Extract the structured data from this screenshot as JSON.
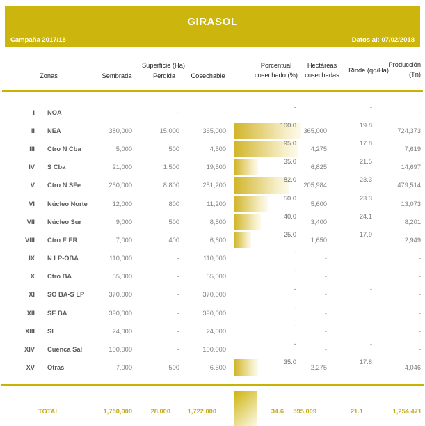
{
  "header": {
    "title": "GIRASOL",
    "campaign": "Campaña 2017/18",
    "data_as_of": "Datos al: 07/02/2018"
  },
  "columns": {
    "zonas": "Zonas",
    "superficie_group": "Superficie (Ha)",
    "sembrada": "Sembrada",
    "perdida": "Perdida",
    "cosechable": "Cosechable",
    "pct_line1": "Porcentual",
    "pct_line2": "cosechado (%)",
    "hect_line1": "Hectáreas",
    "hect_line2": "cosechadas",
    "rinde": "Rinde (qq/Ha)",
    "prod_line1": "Producción",
    "prod_line2": "(Tn)"
  },
  "colors": {
    "band": "#CCB60E",
    "rule": "#C8B400",
    "bar_start": "#D2B52B",
    "bar_end": "#FDFAEA",
    "total_text": "#C5AB1D"
  },
  "chart_data": {
    "type": "table",
    "title": "GIRASOL",
    "subtitle": "Campaña 2017/18 — Datos al: 07/02/2018",
    "bar_column": "pct",
    "bar_range": [
      0,
      100
    ],
    "rows": [
      {
        "num": "I",
        "zone": "NOA",
        "sembrada": "-",
        "perdida": "-",
        "cosechable": "-",
        "pct": "-",
        "pct_value": 0,
        "hect": "-",
        "rinde": "-",
        "prod": "-"
      },
      {
        "num": "II",
        "zone": "NEA",
        "sembrada": "380,000",
        "perdida": "15,000",
        "cosechable": "365,000",
        "pct": "100.0",
        "pct_value": 100,
        "hect": "365,000",
        "rinde": "19.8",
        "prod": "724,373"
      },
      {
        "num": "III",
        "zone": "Ctro N Cba",
        "sembrada": "5,000",
        "perdida": "500",
        "cosechable": "4,500",
        "pct": "95.0",
        "pct_value": 95,
        "hect": "4,275",
        "rinde": "17.8",
        "prod": "7,619"
      },
      {
        "num": "IV",
        "zone": "S Cba",
        "sembrada": "21,000",
        "perdida": "1,500",
        "cosechable": "19,500",
        "pct": "35.0",
        "pct_value": 35,
        "hect": "6,825",
        "rinde": "21.5",
        "prod": "14,697"
      },
      {
        "num": "V",
        "zone": "Ctro N SFe",
        "sembrada": "260,000",
        "perdida": "8,800",
        "cosechable": "251,200",
        "pct": "82.0",
        "pct_value": 82,
        "hect": "205,984",
        "rinde": "23.3",
        "prod": "479,514"
      },
      {
        "num": "VI",
        "zone": "Núcleo Norte",
        "sembrada": "12,000",
        "perdida": "800",
        "cosechable": "11,200",
        "pct": "50.0",
        "pct_value": 50,
        "hect": "5,600",
        "rinde": "23.3",
        "prod": "13,073"
      },
      {
        "num": "VII",
        "zone": "Núcleo Sur",
        "sembrada": "9,000",
        "perdida": "500",
        "cosechable": "8,500",
        "pct": "40.0",
        "pct_value": 40,
        "hect": "3,400",
        "rinde": "24.1",
        "prod": "8,201"
      },
      {
        "num": "VIII",
        "zone": "Ctro E ER",
        "sembrada": "7,000",
        "perdida": "400",
        "cosechable": "6,600",
        "pct": "25.0",
        "pct_value": 25,
        "hect": "1,650",
        "rinde": "17.9",
        "prod": "2,949"
      },
      {
        "num": "IX",
        "zone": "N LP-OBA",
        "sembrada": "110,000",
        "perdida": "-",
        "cosechable": "110,000",
        "pct": "-",
        "pct_value": 0,
        "hect": "-",
        "rinde": "-",
        "prod": "-"
      },
      {
        "num": "X",
        "zone": "Ctro BA",
        "sembrada": "55,000",
        "perdida": "-",
        "cosechable": "55,000",
        "pct": "-",
        "pct_value": 0,
        "hect": "-",
        "rinde": "-",
        "prod": "-"
      },
      {
        "num": "XI",
        "zone": "SO BA-S LP",
        "sembrada": "370,000",
        "perdida": "-",
        "cosechable": "370,000",
        "pct": "-",
        "pct_value": 0,
        "hect": "-",
        "rinde": "-",
        "prod": "-"
      },
      {
        "num": "XII",
        "zone": "SE BA",
        "sembrada": "390,000",
        "perdida": "-",
        "cosechable": "390,000",
        "pct": "-",
        "pct_value": 0,
        "hect": "-",
        "rinde": "-",
        "prod": "-"
      },
      {
        "num": "XIII",
        "zone": "SL",
        "sembrada": "24,000",
        "perdida": "-",
        "cosechable": "24,000",
        "pct": "-",
        "pct_value": 0,
        "hect": "-",
        "rinde": "-",
        "prod": "-"
      },
      {
        "num": "XIV",
        "zone": "Cuenca Sal",
        "sembrada": "100,000",
        "perdida": "-",
        "cosechable": "100,000",
        "pct": "-",
        "pct_value": 0,
        "hect": "-",
        "rinde": "-",
        "prod": "-"
      },
      {
        "num": "XV",
        "zone": "Otras",
        "sembrada": "7,000",
        "perdida": "500",
        "cosechable": "6,500",
        "pct": "35.0",
        "pct_value": 35,
        "hect": "2,275",
        "rinde": "17.8",
        "prod": "4,046"
      }
    ],
    "total": {
      "label": "TOTAL",
      "sembrada": "1,750,000",
      "perdida": "28,000",
      "cosechable": "1,722,000",
      "pct": "34.6",
      "pct_value": 34.6,
      "hect": "595,009",
      "rinde": "21.1",
      "prod": "1,254,471"
    }
  }
}
